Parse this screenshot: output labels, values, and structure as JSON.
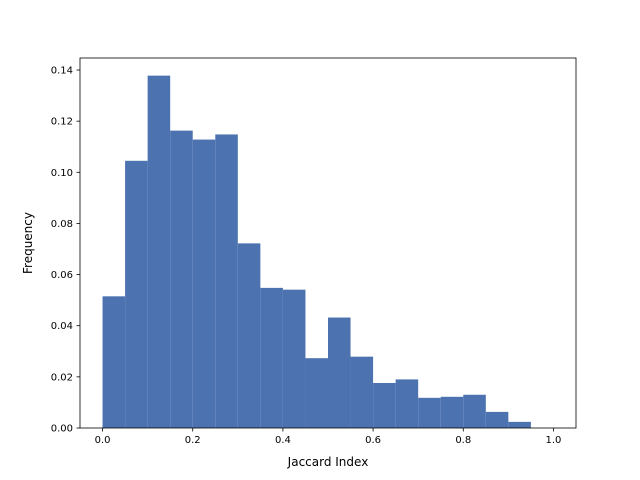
{
  "chart_data": {
    "type": "histogram",
    "xlabel": "Jaccard Index",
    "ylabel": "Frequency",
    "bins": [
      0,
      0.05,
      0.1,
      0.15,
      0.2,
      0.25,
      0.3,
      0.35,
      0.4,
      0.45,
      0.5,
      0.55,
      0.6,
      0.65,
      0.7,
      0.75,
      0.8,
      0.85,
      0.9,
      0.95,
      1.0
    ],
    "counts": [
      0.0515,
      0.1045,
      0.1378,
      0.1163,
      0.1128,
      0.1148,
      0.0722,
      0.0548,
      0.0541,
      0.0273,
      0.0432,
      0.0279,
      0.0176,
      0.019,
      0.0118,
      0.0122,
      0.013,
      0.0063,
      0.0024,
      0
    ],
    "color": "#4c72b0",
    "xlim": [
      -0.05,
      1.05
    ],
    "ylim": [
      0,
      0.1447
    ],
    "xticks": [
      {
        "value": 0,
        "label": "0.0"
      },
      {
        "value": 0.2,
        "label": "0.2"
      },
      {
        "value": 0.4,
        "label": "0.4"
      },
      {
        "value": 0.6,
        "label": "0.6"
      },
      {
        "value": 0.8,
        "label": "0.8"
      },
      {
        "value": 1,
        "label": "1.0"
      }
    ],
    "yticks": [
      {
        "value": 0,
        "label": "0.00"
      },
      {
        "value": 0.02,
        "label": "0.02"
      },
      {
        "value": 0.04,
        "label": "0.04"
      },
      {
        "value": 0.06,
        "label": "0.06"
      },
      {
        "value": 0.08,
        "label": "0.08"
      },
      {
        "value": 0.1,
        "label": "0.10"
      },
      {
        "value": 0.12,
        "label": "0.12"
      },
      {
        "value": 0.14,
        "label": "0.14"
      }
    ]
  }
}
